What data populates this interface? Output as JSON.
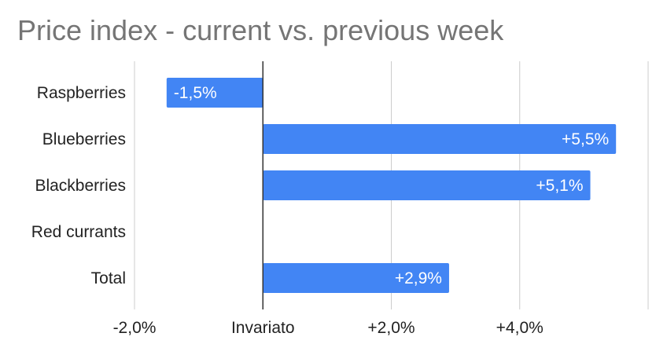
{
  "chart_data": {
    "type": "bar",
    "orientation": "horizontal",
    "title": "Price index - current vs. previous week",
    "categories": [
      "Raspberries",
      "Blueberries",
      "Blackberries",
      "Red currants",
      "Total"
    ],
    "values": [
      -1.5,
      5.5,
      5.1,
      null,
      2.9
    ],
    "data_labels": [
      "-1,5%",
      "+5,5%",
      "+5,1%",
      "",
      "+2,9%"
    ],
    "xticks": [
      {
        "value": -2,
        "label": "-2,0%"
      },
      {
        "value": 0,
        "label": "Invariato"
      },
      {
        "value": 2,
        "label": "+2,0%"
      },
      {
        "value": 4,
        "label": "+4,0%"
      },
      {
        "value": 6,
        "label": ""
      }
    ],
    "xlim": [
      -2,
      6
    ],
    "grid": true,
    "bar_color": "#4285f4",
    "grid_color": "#cccccc",
    "zero_line_color": "#333333"
  }
}
